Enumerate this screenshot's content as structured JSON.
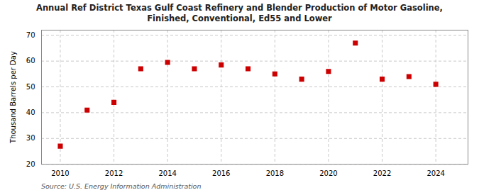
{
  "chart_data": {
    "type": "scatter",
    "title": "Annual Ref District Texas Gulf Coast Refinery and Blender Production of Motor Gasoline,\nFinished, Conventional, Ed55 and Lower",
    "ylabel": "Thousand Barrels per Day",
    "source": "Source: U.S. Energy Information Administration",
    "x": [
      2010,
      2011,
      2012,
      2013,
      2014,
      2015,
      2016,
      2017,
      2018,
      2019,
      2020,
      2021,
      2022,
      2023,
      2024
    ],
    "values": [
      27,
      41,
      44,
      57,
      59.5,
      57,
      58.5,
      57,
      55,
      53,
      56,
      67,
      53,
      54,
      51
    ],
    "xlim": [
      2009.3,
      2025.2
    ],
    "ylim": [
      20,
      72
    ],
    "xticks": [
      2010,
      2012,
      2014,
      2016,
      2018,
      2020,
      2022,
      2024
    ],
    "yticks": [
      20,
      30,
      40,
      50,
      60,
      70
    ],
    "color": "#cc0000",
    "marker": "square",
    "grid": true
  }
}
